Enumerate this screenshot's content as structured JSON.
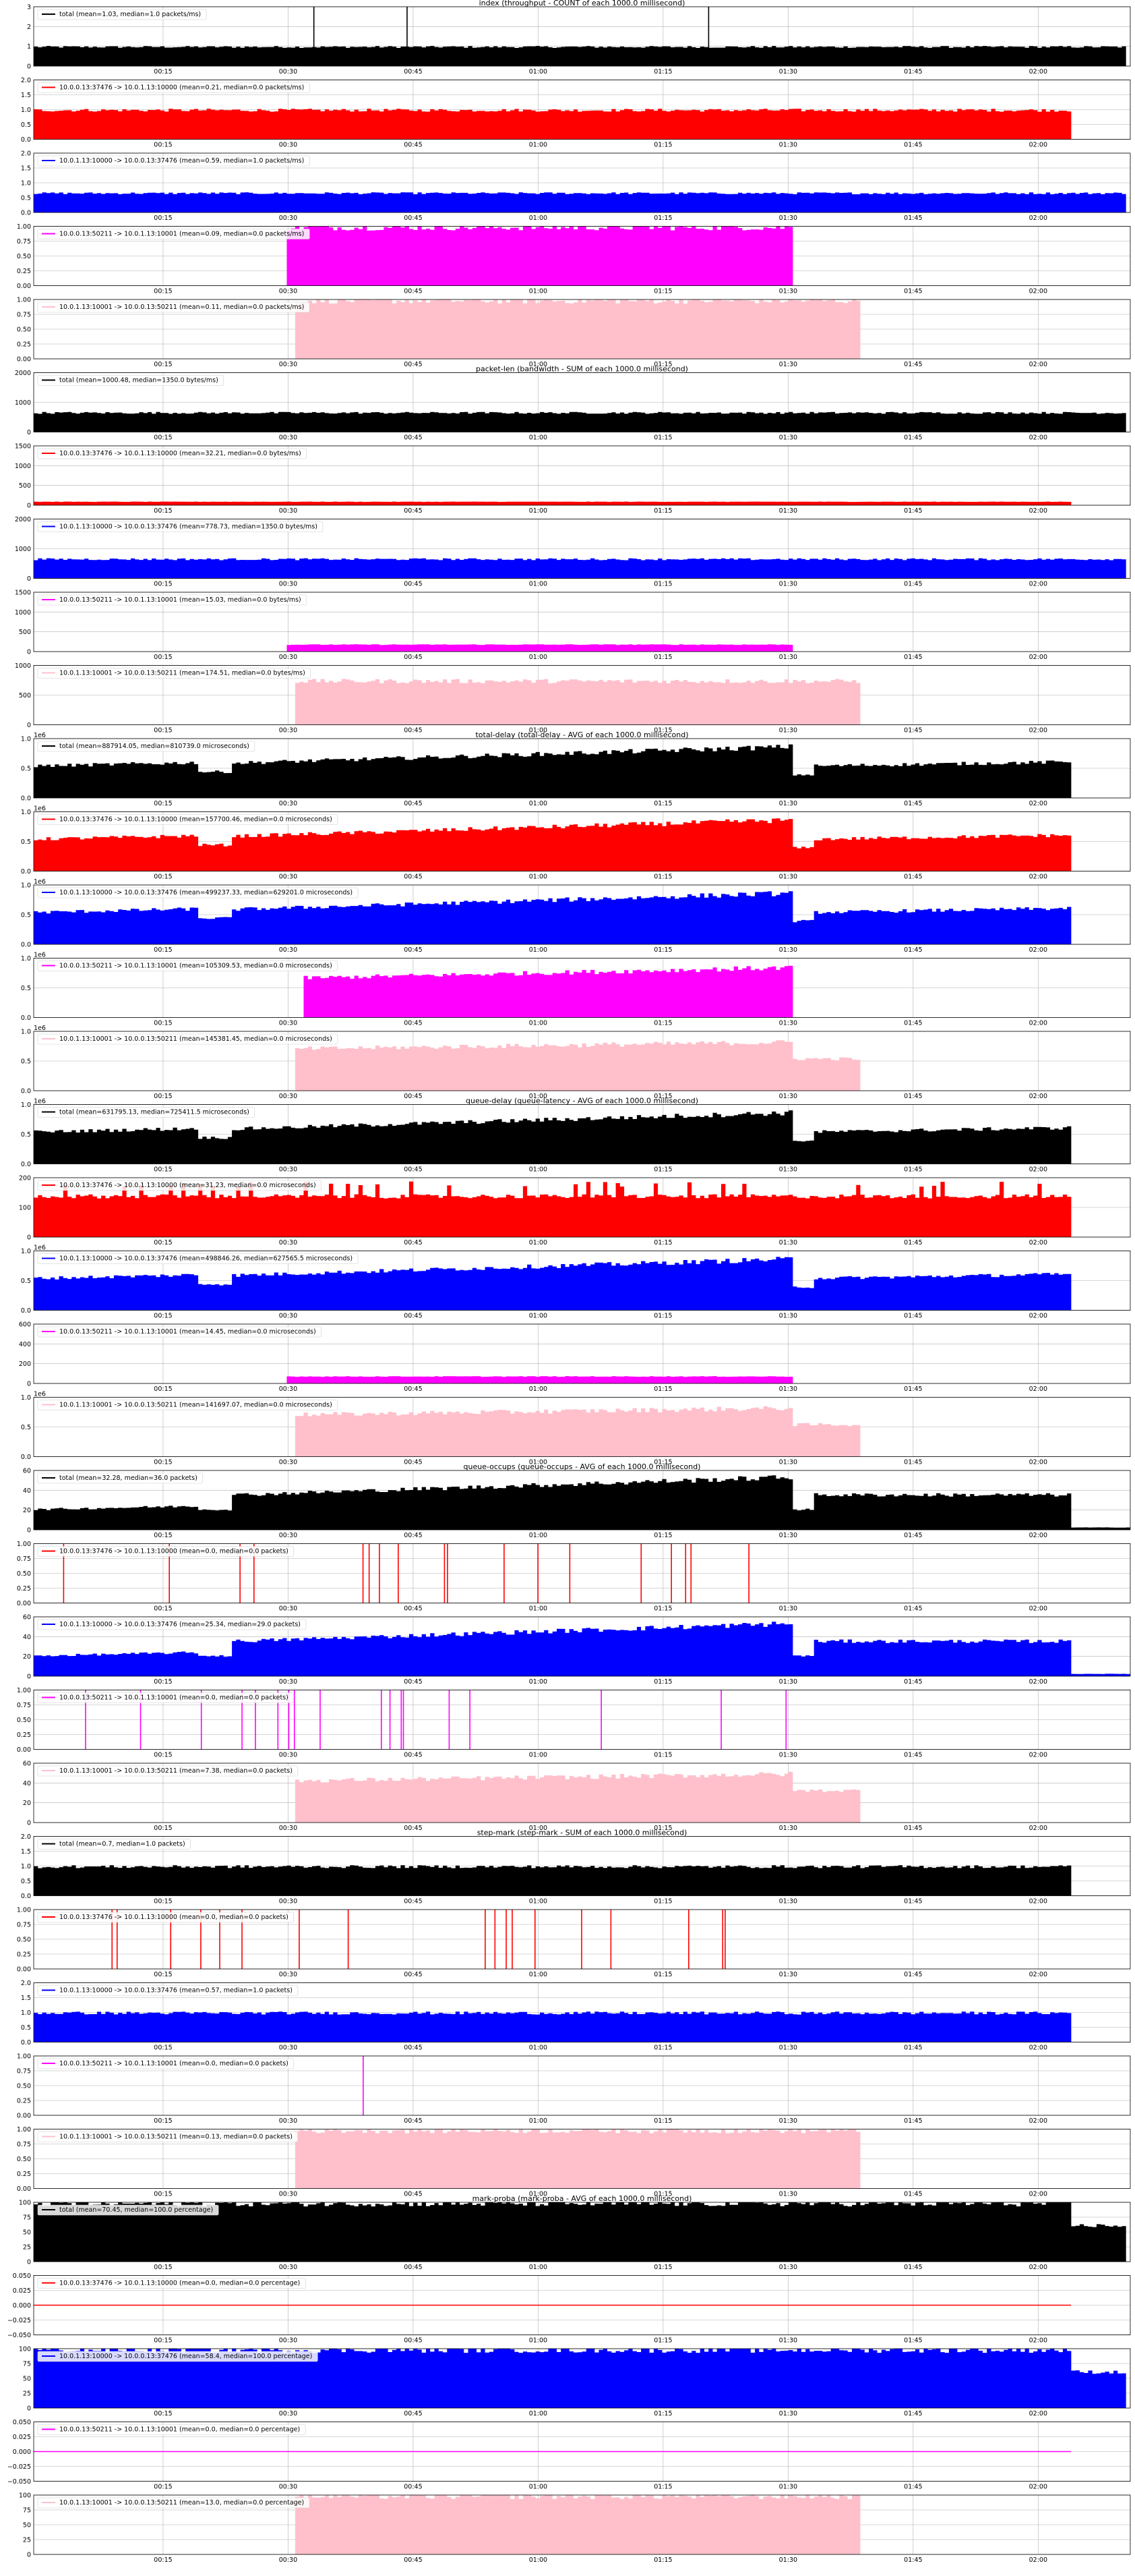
{
  "colors": {
    "total": "#000000",
    "flow1": "#ff0000",
    "flow2": "#0000ff",
    "flow3": "#ff00ff",
    "flow4": "#ffc0cb",
    "grid": "#b0b0b0"
  },
  "x_axis": {
    "ticks": [
      "00:15",
      "00:30",
      "00:45",
      "01:00",
      "01:15",
      "01:30",
      "01:45",
      "02:00"
    ]
  },
  "chart_data": [
    {
      "group": "index",
      "title": "index (throughput - COUNT of each 1000.0 millisecond)",
      "type": "bar",
      "series": [
        {
          "name": "total (mean=1.03, median=1.0 packets/ms)",
          "color_key": "total",
          "y_ticks": [
            "0",
            "1",
            "2",
            "3"
          ],
          "ylim": [
            0,
            3
          ]
        }
      ]
    },
    {
      "group": "index",
      "type": "bar",
      "series": [
        {
          "name": "10.0.0.13:37476 -> 10.0.1.13:10000 (mean=0.21, median=0.0 packets/ms)",
          "color_key": "flow1",
          "y_ticks": [
            "0.0",
            "0.5",
            "1.0",
            "1.5",
            "2.0"
          ],
          "ylim": [
            0,
            2
          ]
        }
      ]
    },
    {
      "group": "index",
      "type": "bar",
      "series": [
        {
          "name": "10.0.1.13:10000 -> 10.0.0.13:37476 (mean=0.59, median=1.0 packets/ms)",
          "color_key": "flow2",
          "y_ticks": [
            "0.0",
            "0.5",
            "1.0",
            "1.5",
            "2.0"
          ],
          "ylim": [
            0,
            2
          ]
        }
      ]
    },
    {
      "group": "index",
      "type": "bar",
      "series": [
        {
          "name": "10.0.0.13:50211 -> 10.0.1.13:10001 (mean=0.09, median=0.0 packets/ms)",
          "color_key": "flow3",
          "y_ticks": [
            "0.00",
            "0.25",
            "0.50",
            "0.75",
            "1.00"
          ],
          "ylim": [
            0,
            1
          ]
        }
      ]
    },
    {
      "group": "index",
      "type": "bar",
      "series": [
        {
          "name": "10.0.1.13:10001 -> 10.0.0.13:50211 (mean=0.11, median=0.0 packets/ms)",
          "color_key": "flow4",
          "y_ticks": [
            "0.00",
            "0.25",
            "0.50",
            "0.75",
            "1.00"
          ],
          "ylim": [
            0,
            1
          ]
        }
      ]
    },
    {
      "group": "packet-len",
      "title": "packet-len (bandwidth - SUM of each 1000.0 millisecond)",
      "type": "bar",
      "series": [
        {
          "name": "total (mean=1000.48, median=1350.0 bytes/ms)",
          "color_key": "total",
          "y_ticks": [
            "0",
            "1000",
            "2000"
          ],
          "ylim": [
            0,
            2700
          ]
        }
      ]
    },
    {
      "group": "packet-len",
      "type": "bar",
      "series": [
        {
          "name": "10.0.0.13:37476 -> 10.0.1.13:10000 (mean=32.21, median=0.0 bytes/ms)",
          "color_key": "flow1",
          "y_ticks": [
            "0",
            "500",
            "1000",
            "1500"
          ],
          "ylim": [
            0,
            1700
          ]
        }
      ]
    },
    {
      "group": "packet-len",
      "type": "bar",
      "series": [
        {
          "name": "10.0.1.13:10000 -> 10.0.0.13:37476 (mean=778.73, median=1350.0 bytes/ms)",
          "color_key": "flow2",
          "y_ticks": [
            "0",
            "1000",
            "2000"
          ],
          "ylim": [
            0,
            2700
          ]
        }
      ]
    },
    {
      "group": "packet-len",
      "type": "bar",
      "series": [
        {
          "name": "10.0.0.13:50211 -> 10.0.1.13:10001 (mean=15.03, median=0.0 bytes/ms)",
          "color_key": "flow3",
          "y_ticks": [
            "0",
            "500",
            "1000",
            "1500"
          ],
          "ylim": [
            0,
            1500
          ]
        }
      ]
    },
    {
      "group": "packet-len",
      "type": "bar",
      "series": [
        {
          "name": "10.0.1.13:10001 -> 10.0.0.13:50211 (mean=174.51, median=0.0 bytes/ms)",
          "color_key": "flow4",
          "y_ticks": [
            "0",
            "500",
            "1000"
          ],
          "ylim": [
            0,
            1400
          ]
        }
      ]
    },
    {
      "group": "total-delay",
      "title": "total-delay (total-delay - AVG of each 1000.0 millisecond)",
      "type": "bar",
      "series": [
        {
          "name": "total (mean=887914.05, median=810739.0 microseconds)",
          "color_key": "total",
          "offset_label": "1e6",
          "y_ticks": [
            "0.0",
            "0.5",
            "1.0"
          ],
          "ylim": [
            0,
            1.3
          ]
        }
      ]
    },
    {
      "group": "total-delay",
      "type": "bar",
      "series": [
        {
          "name": "10.0.0.13:37476 -> 10.0.1.13:10000 (mean=157700.46, median=0.0 microseconds)",
          "color_key": "flow1",
          "offset_label": "1e6",
          "y_ticks": [
            "0.0",
            "0.5",
            "1.0"
          ],
          "ylim": [
            0,
            1.3
          ]
        }
      ]
    },
    {
      "group": "total-delay",
      "type": "bar",
      "series": [
        {
          "name": "10.0.1.13:10000 -> 10.0.0.13:37476 (mean=499237.33, median=629201.0 microseconds)",
          "color_key": "flow2",
          "offset_label": "1e6",
          "y_ticks": [
            "0.0",
            "0.5",
            "1.0"
          ],
          "ylim": [
            0,
            1.3
          ]
        }
      ]
    },
    {
      "group": "total-delay",
      "type": "bar",
      "series": [
        {
          "name": "10.0.0.13:50211 -> 10.0.1.13:10001 (mean=105309.53, median=0.0 microseconds)",
          "color_key": "flow3",
          "offset_label": "1e6",
          "y_ticks": [
            "0.0",
            "0.5",
            "1.0"
          ],
          "ylim": [
            0,
            1.3
          ]
        }
      ]
    },
    {
      "group": "total-delay",
      "type": "bar",
      "series": [
        {
          "name": "10.0.1.13:10001 -> 10.0.0.13:50211 (mean=145381.45, median=0.0 microseconds)",
          "color_key": "flow4",
          "offset_label": "1e6",
          "y_ticks": [
            "0.0",
            "0.5",
            "1.0"
          ],
          "ylim": [
            0,
            1.3
          ]
        }
      ]
    },
    {
      "group": "queue-delay",
      "title": "queue-delay (queue-latency - AVG of each 1000.0 millisecond)",
      "type": "bar",
      "series": [
        {
          "name": "total (mean=631795.13, median=725411.5 microseconds)",
          "color_key": "total",
          "offset_label": "1e6",
          "y_ticks": [
            "0.0",
            "0.5",
            "1.0"
          ],
          "ylim": [
            0,
            1.3
          ]
        }
      ]
    },
    {
      "group": "queue-delay",
      "type": "bar",
      "series": [
        {
          "name": "10.0.0.13:37476 -> 10.0.1.13:10000 (mean=31.23, median=0.0 microseconds)",
          "color_key": "flow1",
          "y_ticks": [
            "0",
            "100",
            "200"
          ],
          "ylim": [
            0,
            230
          ]
        }
      ]
    },
    {
      "group": "queue-delay",
      "type": "bar",
      "series": [
        {
          "name": "10.0.1.13:10000 -> 10.0.0.13:37476 (mean=498846.26, median=627565.5 microseconds)",
          "color_key": "flow2",
          "offset_label": "1e6",
          "y_ticks": [
            "0.0",
            "0.5",
            "1.0"
          ],
          "ylim": [
            0,
            1.3
          ]
        }
      ]
    },
    {
      "group": "queue-delay",
      "type": "bar",
      "series": [
        {
          "name": "10.0.0.13:50211 -> 10.0.1.13:10001 (mean=14.45, median=0.0 microseconds)",
          "color_key": "flow3",
          "y_ticks": [
            "0",
            "200",
            "400",
            "600"
          ],
          "ylim": [
            0,
            750
          ]
        }
      ]
    },
    {
      "group": "queue-delay",
      "type": "bar",
      "series": [
        {
          "name": "10.0.1.13:10001 -> 10.0.0.13:50211 (mean=141697.07, median=0.0 microseconds)",
          "color_key": "flow4",
          "offset_label": "1e6",
          "y_ticks": [
            "0.0",
            "0.5",
            "1.0"
          ],
          "ylim": [
            0,
            1.3
          ]
        }
      ]
    },
    {
      "group": "queue-occups",
      "title": "queue-occups (queue-occups - AVG of each 1000.0 millisecond)",
      "type": "bar",
      "series": [
        {
          "name": "total (mean=32.28, median=36.0 packets)",
          "color_key": "total",
          "y_ticks": [
            "0",
            "20",
            "40",
            "60"
          ],
          "ylim": [
            0,
            65
          ]
        }
      ]
    },
    {
      "group": "queue-occups",
      "type": "bar",
      "series": [
        {
          "name": "10.0.0.13:37476 -> 10.0.1.13:10000 (mean=0.0, median=0.0 packets)",
          "color_key": "flow1",
          "y_ticks": [
            "0.00",
            "0.25",
            "0.50",
            "0.75",
            "1.00"
          ],
          "ylim": [
            0,
            1
          ]
        }
      ]
    },
    {
      "group": "queue-occups",
      "type": "bar",
      "series": [
        {
          "name": "10.0.1.13:10000 -> 10.0.0.13:37476 (mean=25.34, median=29.0 packets)",
          "color_key": "flow2",
          "y_ticks": [
            "0",
            "20",
            "40",
            "60"
          ],
          "ylim": [
            0,
            65
          ]
        }
      ]
    },
    {
      "group": "queue-occups",
      "type": "bar",
      "series": [
        {
          "name": "10.0.0.13:50211 -> 10.0.1.13:10001 (mean=0.0, median=0.0 packets)",
          "color_key": "flow3",
          "y_ticks": [
            "0.00",
            "0.25",
            "0.50",
            "0.75",
            "1.00"
          ],
          "ylim": [
            0,
            1
          ]
        }
      ]
    },
    {
      "group": "queue-occups",
      "type": "bar",
      "series": [
        {
          "name": "10.0.1.13:10001 -> 10.0.0.13:50211 (mean=7.38, median=0.0 packets)",
          "color_key": "flow4",
          "y_ticks": [
            "0",
            "20",
            "40",
            "60"
          ],
          "ylim": [
            0,
            65
          ]
        }
      ]
    },
    {
      "group": "step-mark",
      "title": "step-mark (step-mark - SUM of each 1000.0 millisecond)",
      "type": "bar",
      "series": [
        {
          "name": "total (mean=0.7, median=1.0 packets)",
          "color_key": "total",
          "y_ticks": [
            "0.0",
            "0.5",
            "1.0",
            "1.5",
            "2.0"
          ],
          "ylim": [
            0,
            2
          ]
        }
      ]
    },
    {
      "group": "step-mark",
      "type": "bar",
      "series": [
        {
          "name": "10.0.0.13:37476 -> 10.0.1.13:10000 (mean=0.0, median=0.0 packets)",
          "color_key": "flow1",
          "y_ticks": [
            "0.00",
            "0.25",
            "0.50",
            "0.75",
            "1.00"
          ],
          "ylim": [
            0,
            1
          ]
        }
      ]
    },
    {
      "group": "step-mark",
      "type": "bar",
      "series": [
        {
          "name": "10.0.1.13:10000 -> 10.0.0.13:37476 (mean=0.57, median=1.0 packets)",
          "color_key": "flow2",
          "y_ticks": [
            "0.0",
            "0.5",
            "1.0",
            "1.5",
            "2.0"
          ],
          "ylim": [
            0,
            2
          ]
        }
      ]
    },
    {
      "group": "step-mark",
      "type": "bar",
      "series": [
        {
          "name": "10.0.0.13:50211 -> 10.0.1.13:10001 (mean=0.0, median=0.0 packets)",
          "color_key": "flow3",
          "y_ticks": [
            "0.00",
            "0.25",
            "0.50",
            "0.75",
            "1.00"
          ],
          "ylim": [
            0,
            1
          ]
        }
      ]
    },
    {
      "group": "step-mark",
      "type": "bar",
      "series": [
        {
          "name": "10.0.1.13:10001 -> 10.0.0.13:50211 (mean=0.13, median=0.0 packets)",
          "color_key": "flow4",
          "y_ticks": [
            "0.00",
            "0.25",
            "0.50",
            "0.75",
            "1.00"
          ],
          "ylim": [
            0,
            1
          ]
        }
      ]
    },
    {
      "group": "mark-proba",
      "title": "mark-proba (mark-proba - AVG of each 1000.0 millisecond)",
      "type": "bar",
      "series": [
        {
          "name": "total (mean=70.45, median=100.0 percentage)",
          "color_key": "total",
          "y_ticks": [
            "0",
            "25",
            "50",
            "75",
            "100"
          ],
          "ylim": [
            0,
            100
          ]
        }
      ]
    },
    {
      "group": "mark-proba",
      "type": "line",
      "series": [
        {
          "name": "10.0.0.13:37476 -> 10.0.1.13:10000 (mean=0.0, median=0.0 percentage)",
          "color_key": "flow1",
          "y_ticks": [
            "−0.050",
            "−0.025",
            "0.000",
            "0.025",
            "0.050"
          ],
          "ylim": [
            -0.05,
            0.05
          ]
        }
      ]
    },
    {
      "group": "mark-proba",
      "type": "bar",
      "series": [
        {
          "name": "10.0.1.13:10000 -> 10.0.0.13:37476 (mean=58.4, median=100.0 percentage)",
          "color_key": "flow2",
          "y_ticks": [
            "0",
            "25",
            "50",
            "75",
            "100"
          ],
          "ylim": [
            0,
            100
          ]
        }
      ]
    },
    {
      "group": "mark-proba",
      "type": "line",
      "series": [
        {
          "name": "10.0.0.13:50211 -> 10.0.1.13:10001 (mean=0.0, median=0.0 percentage)",
          "color_key": "flow3",
          "y_ticks": [
            "−0.050",
            "−0.025",
            "0.000",
            "0.025",
            "0.050"
          ],
          "ylim": [
            -0.05,
            0.05
          ]
        }
      ]
    },
    {
      "group": "mark-proba",
      "type": "bar",
      "series": [
        {
          "name": "10.0.1.13:10001 -> 10.0.0.13:50211 (mean=13.0, median=0.0 percentage)",
          "color_key": "flow4",
          "y_ticks": [
            "0",
            "25",
            "50",
            "75",
            "100"
          ],
          "ylim": [
            0,
            100
          ]
        }
      ]
    }
  ]
}
